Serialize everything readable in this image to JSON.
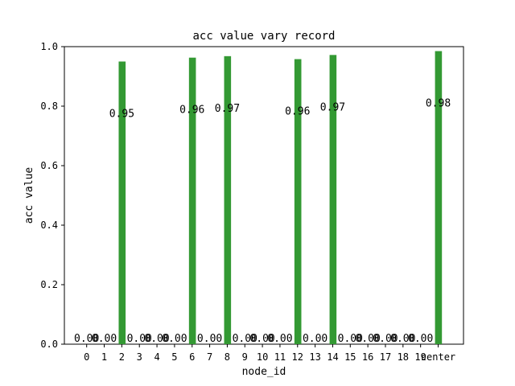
{
  "chart_data": {
    "type": "bar",
    "title": "acc value vary record",
    "xlabel": "node_id",
    "ylabel": "acc value",
    "ylim": [
      0,
      1.0
    ],
    "yticks": [
      "0.0",
      "0.2",
      "0.4",
      "0.6",
      "0.8",
      "1.0"
    ],
    "categories": [
      "0",
      "1",
      "2",
      "3",
      "4",
      "5",
      "6",
      "7",
      "8",
      "9",
      "10",
      "11",
      "12",
      "13",
      "14",
      "15",
      "16",
      "17",
      "18",
      "19",
      "center"
    ],
    "values": [
      0.0,
      0.0,
      0.95,
      0.0,
      0.0,
      0.0,
      0.963,
      0.0,
      0.968,
      0.0,
      0.0,
      0.0,
      0.958,
      0.0,
      0.972,
      0.0,
      0.0,
      0.0,
      0.0,
      0.0,
      0.985
    ],
    "data_labels": [
      "0.00",
      "0.00",
      "0.95",
      "0.00",
      "0.00",
      "0.00",
      "0.96",
      "0.00",
      "0.97",
      "0.00",
      "0.00",
      "0.00",
      "0.96",
      "0.00",
      "0.97",
      "0.00",
      "0.00",
      "0.00",
      "0.00",
      "0.00",
      "0.98"
    ],
    "bar_color": "#339933",
    "grid": false,
    "legend": "none"
  }
}
